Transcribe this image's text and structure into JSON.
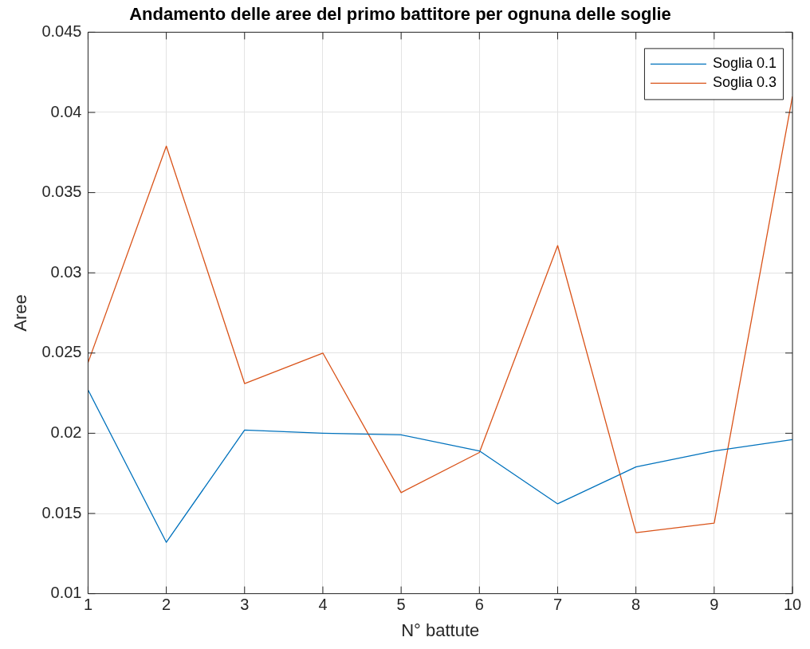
{
  "chart_data": {
    "type": "line",
    "title": "Andamento delle aree del primo battitore per ognuna delle soglie",
    "xlabel": "N° battute",
    "ylabel": "Aree",
    "x": [
      1,
      2,
      3,
      4,
      5,
      6,
      7,
      8,
      9,
      10
    ],
    "series": [
      {
        "name": "Soglia 0.1",
        "color": "#0072bd",
        "values": [
          0.0227,
          0.0132,
          0.0202,
          0.02,
          0.0199,
          0.0189,
          0.0156,
          0.0179,
          0.0189,
          0.0196
        ]
      },
      {
        "name": "Soglia 0.3",
        "color": "#d95319",
        "values": [
          0.0244,
          0.0379,
          0.0231,
          0.025,
          0.0163,
          0.0188,
          0.0317,
          0.0138,
          0.0144,
          0.041
        ]
      }
    ],
    "xlim": [
      1,
      10
    ],
    "xticks": [
      1,
      2,
      3,
      4,
      5,
      6,
      7,
      8,
      9,
      10
    ],
    "ylim": [
      0.01,
      0.045
    ],
    "yticks": [
      0.01,
      0.015,
      0.02,
      0.025,
      0.03,
      0.035,
      0.04,
      0.045
    ],
    "grid": true,
    "legend": "top right",
    "marker": "none",
    "line_style": "solid"
  }
}
